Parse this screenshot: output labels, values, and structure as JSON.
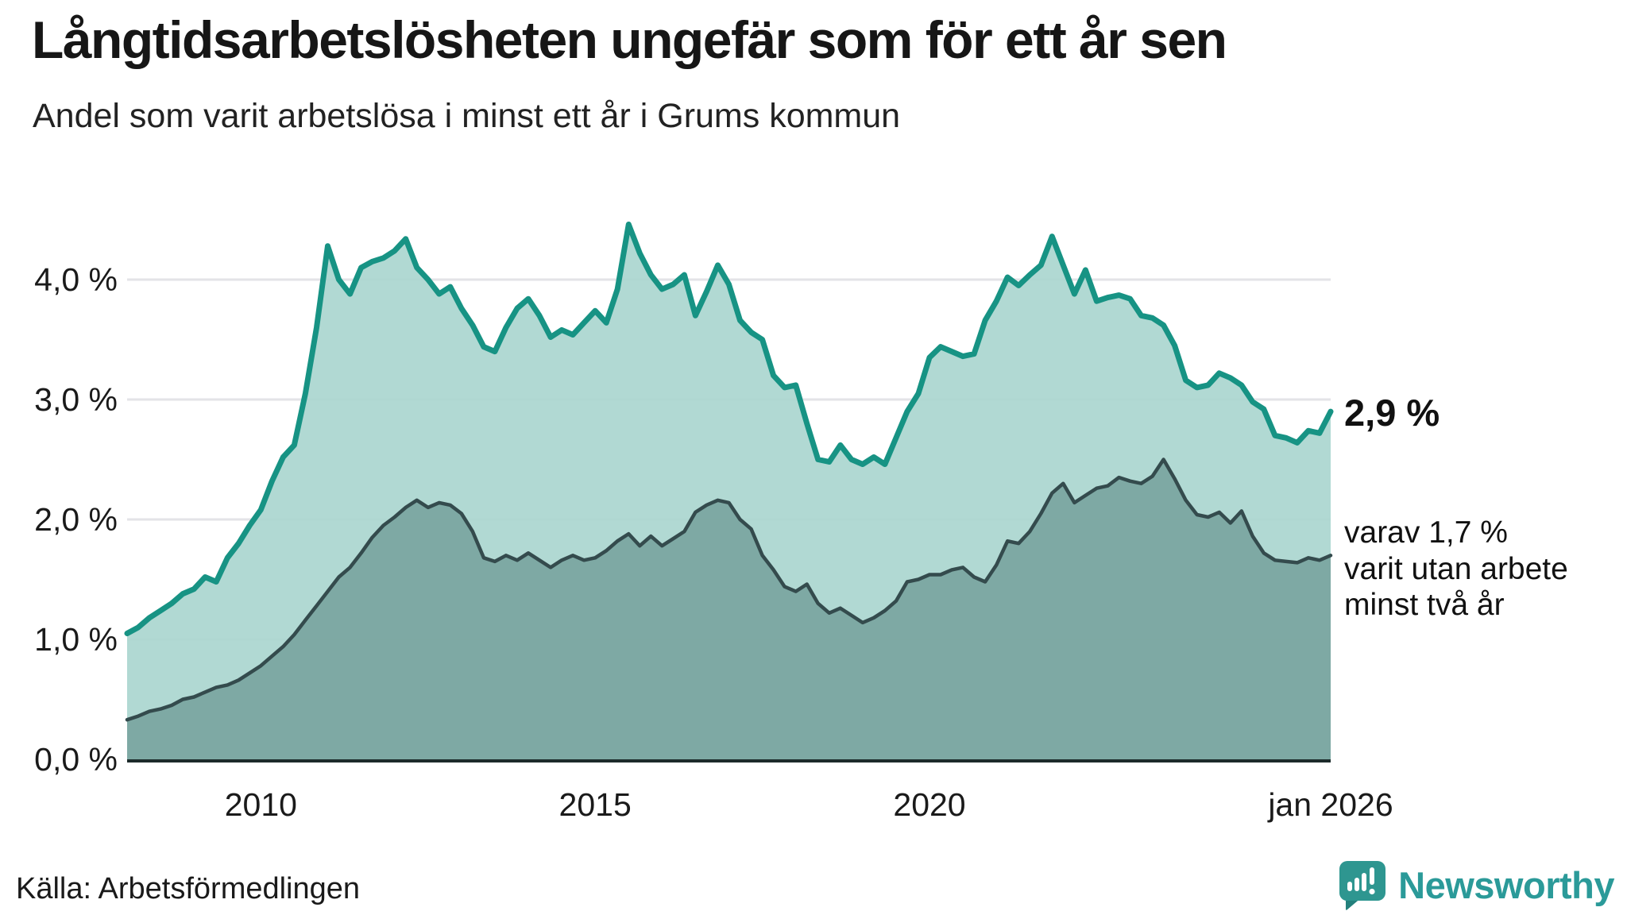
{
  "header": {
    "title": "Långtidsarbetslösheten ungefär som för ett år sen",
    "subtitle": "Andel som varit arbetslösa i minst ett år i Grums kommun"
  },
  "chart_data": {
    "type": "area",
    "title": "Långtidsarbetslösheten ungefär som för ett år sen",
    "subtitle": "Andel som varit arbetslösa i minst ett år i Grums kommun",
    "unit": "%",
    "x_start": 2008.0,
    "points_per_year": 6,
    "x_end": 2026.0,
    "y_range": [
      0,
      4.7
    ],
    "grid": true,
    "legend_position": "right-annotations",
    "x_ticks": [
      {
        "value": 2010,
        "label": "2010"
      },
      {
        "value": 2015,
        "label": "2015"
      },
      {
        "value": 2020,
        "label": "2020"
      },
      {
        "value": 2026.0,
        "label": "jan 2026"
      }
    ],
    "y_ticks": [
      {
        "value": 4,
        "label": "4,0 %"
      },
      {
        "value": 3,
        "label": "3,0 %"
      },
      {
        "value": 2,
        "label": "2,0 %"
      },
      {
        "value": 1,
        "label": "1,0 %"
      },
      {
        "value": 0,
        "label": "0,0 %"
      }
    ],
    "series": [
      {
        "name": "Andel som varit arbetslösa minst ett år",
        "color": "#179384",
        "fill": "#a9d5ce",
        "end_value": 2.9,
        "values": [
          1.05,
          1.1,
          1.18,
          1.24,
          1.3,
          1.38,
          1.42,
          1.52,
          1.48,
          1.68,
          1.8,
          1.95,
          2.08,
          2.32,
          2.52,
          2.62,
          3.05,
          3.6,
          4.28,
          4.0,
          3.88,
          4.1,
          4.15,
          4.18,
          4.24,
          4.34,
          4.1,
          4.0,
          3.88,
          3.94,
          3.76,
          3.62,
          3.44,
          3.4,
          3.6,
          3.76,
          3.84,
          3.7,
          3.52,
          3.58,
          3.54,
          3.64,
          3.74,
          3.64,
          3.92,
          4.46,
          4.22,
          4.04,
          3.92,
          3.96,
          4.04,
          3.7,
          3.9,
          4.12,
          3.96,
          3.66,
          3.56,
          3.5,
          3.2,
          3.1,
          3.12,
          2.8,
          2.5,
          2.48,
          2.62,
          2.5,
          2.46,
          2.52,
          2.46,
          2.68,
          2.9,
          3.05,
          3.35,
          3.44,
          3.4,
          3.36,
          3.38,
          3.66,
          3.82,
          4.02,
          3.95,
          4.04,
          4.12,
          4.36,
          4.12,
          3.88,
          4.08,
          3.82,
          3.85,
          3.87,
          3.84,
          3.7,
          3.68,
          3.62,
          3.45,
          3.16,
          3.1,
          3.12,
          3.22,
          3.18,
          3.12,
          2.98,
          2.92,
          2.7,
          2.68,
          2.64,
          2.74,
          2.72,
          2.9
        ]
      },
      {
        "name": "varav arbetslösa minst två år",
        "color": "#344b4d",
        "fill": "#7ca7a1",
        "end_value": 1.7,
        "values": [
          0.33,
          0.36,
          0.4,
          0.42,
          0.45,
          0.5,
          0.52,
          0.56,
          0.6,
          0.62,
          0.66,
          0.72,
          0.78,
          0.86,
          0.94,
          1.04,
          1.16,
          1.28,
          1.4,
          1.52,
          1.6,
          1.72,
          1.85,
          1.95,
          2.02,
          2.1,
          2.16,
          2.1,
          2.14,
          2.12,
          2.05,
          1.9,
          1.68,
          1.65,
          1.7,
          1.66,
          1.72,
          1.66,
          1.6,
          1.66,
          1.7,
          1.66,
          1.68,
          1.74,
          1.82,
          1.88,
          1.78,
          1.86,
          1.78,
          1.84,
          1.9,
          2.06,
          2.12,
          2.16,
          2.14,
          2.0,
          1.92,
          1.7,
          1.58,
          1.44,
          1.4,
          1.46,
          1.3,
          1.22,
          1.26,
          1.2,
          1.14,
          1.18,
          1.24,
          1.32,
          1.48,
          1.5,
          1.54,
          1.54,
          1.58,
          1.6,
          1.52,
          1.48,
          1.62,
          1.82,
          1.8,
          1.9,
          2.05,
          2.22,
          2.3,
          2.14,
          2.2,
          2.26,
          2.28,
          2.35,
          2.32,
          2.3,
          2.36,
          2.5,
          2.34,
          2.16,
          2.04,
          2.02,
          2.06,
          1.97,
          2.07,
          1.86,
          1.72,
          1.66,
          1.65,
          1.64,
          1.68,
          1.66,
          1.7
        ]
      }
    ],
    "annotations": {
      "end_value_label": "2,9 %",
      "secondary_label_lines": [
        "varav 1,7 %",
        "varit utan arbete",
        "minst två år"
      ]
    }
  },
  "footer": {
    "source": "Källa: Arbetsförmedlingen",
    "brand": "Newsworthy"
  },
  "colors": {
    "line_primary": "#179384",
    "fill_primary": "#a9d5ce",
    "line_secondary": "#344b4d",
    "fill_secondary": "#7ca7a1",
    "gridline": "#e3e3e7",
    "axis": "#1c2b2b",
    "brand_teal": "#2b9a99",
    "icon_teal": "#2e9690",
    "icon_teal_dark": "#23807c",
    "text": "#1a1a1a"
  }
}
